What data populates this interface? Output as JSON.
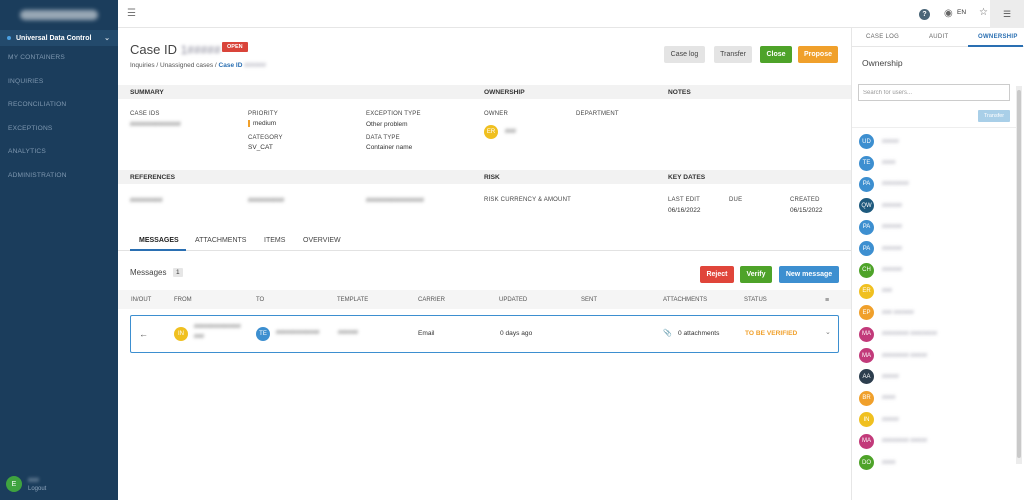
{
  "sidebar": {
    "active_item": "Universal Data Control",
    "nav": [
      "MY CONTAINERS",
      "INQUIRIES",
      "RECONCILIATION",
      "EXCEPTIONS",
      "ANALYTICS",
      "ADMINISTRATION"
    ],
    "user_initial": "E",
    "user_name": "###",
    "user_sub": "Logout"
  },
  "topbar": {
    "lang": "EN",
    "help_icon": "help-icon",
    "globe_icon": "globe-icon",
    "star_icon": "star-icon",
    "list_icon": "list-icon"
  },
  "case": {
    "title": "Case ID",
    "case_id": "1#####",
    "status": "OPEN",
    "breadcrumb": [
      "Inquiries",
      "Unassigned cases",
      "Case ID"
    ],
    "breadcrumb_id": "######"
  },
  "actions": {
    "case_log": "Case log",
    "transfer": "Transfer",
    "close": "Close",
    "propose": "Propose"
  },
  "summary": {
    "header": "SUMMARY",
    "case_ids_label": "CASE IDS",
    "case_ids_value": "##############",
    "priority_label": "PRIORITY",
    "priority_value": "medium",
    "category_label": "CATEGORY",
    "category_value": "SV_CAT",
    "exception_type_label": "EXCEPTION TYPE",
    "exception_type_value": "Other problem",
    "data_type_label": "DATA TYPE",
    "data_type_value": "Container name"
  },
  "ownership": {
    "header": "OWNERSHIP",
    "owner_label": "OWNER",
    "department_label": "DEPARTMENT",
    "owner_initials": "ER",
    "owner_name": "###"
  },
  "notes": {
    "header": "NOTES"
  },
  "references": {
    "header": "REFERENCES",
    "values": [
      "#########",
      "##########",
      "################"
    ]
  },
  "risk": {
    "header": "RISK",
    "label": "RISK CURRENCY & AMOUNT"
  },
  "key_dates": {
    "header": "KEY DATES",
    "last_edit_label": "LAST EDIT",
    "last_edit": "06/16/2022",
    "due_label": "DUE",
    "created_label": "CREATED",
    "created": "06/15/2022"
  },
  "tabs": [
    "MESSAGES",
    "ATTACHMENTS",
    "ITEMS",
    "OVERVIEW"
  ],
  "messages": {
    "label": "Messages",
    "count": "1",
    "reject": "Reject",
    "verify": "Verify",
    "new_message": "New message",
    "columns": [
      "IN/OUT",
      "FROM",
      "TO",
      "TEMPLATE",
      "CARRIER",
      "UPDATED",
      "SENT",
      "ATTACHMENTS",
      "STATUS"
    ],
    "row": {
      "direction_icon": "arrow-left-icon",
      "from_initials": "IN",
      "from_text": "##############",
      "from_text2": "###",
      "to_initials": "TE",
      "to_text": "#############",
      "template": "######",
      "carrier": "Email",
      "updated": "0 days ago",
      "attachments": "0 attachments",
      "status": "TO BE VERIFIED"
    }
  },
  "right_panel": {
    "tabs": [
      "CASE LOG",
      "AUDIT",
      "OWNERSHIP"
    ],
    "title": "Ownership",
    "search_placeholder": "Search for users...",
    "transfer": "Transfer",
    "users": [
      {
        "i": "UD",
        "c": "#3d8fd0",
        "n": "#####"
      },
      {
        "i": "TE",
        "c": "#3d8fd0",
        "n": "####"
      },
      {
        "i": "PA",
        "c": "#3d8fd0",
        "n": "########"
      },
      {
        "i": "QW",
        "c": "#1e5a7e",
        "n": "######"
      },
      {
        "i": "PA",
        "c": "#3d8fd0",
        "n": "######"
      },
      {
        "i": "PA",
        "c": "#3d8fd0",
        "n": "######"
      },
      {
        "i": "CH",
        "c": "#4ea329",
        "n": "######"
      },
      {
        "i": "ER",
        "c": "#f0c020",
        "n": "###"
      },
      {
        "i": "EP",
        "c": "#f0a02b",
        "n": "### ######"
      },
      {
        "i": "MA",
        "c": "#c23a7a",
        "n": "######## ########"
      },
      {
        "i": "MA",
        "c": "#c23a7a",
        "n": "######## #####"
      },
      {
        "i": "AA",
        "c": "#2d3e4e",
        "n": "#####"
      },
      {
        "i": "BR",
        "c": "#f0a02b",
        "n": "####"
      },
      {
        "i": "IN",
        "c": "#f0c020",
        "n": "#####"
      },
      {
        "i": "MA",
        "c": "#c23a7a",
        "n": "######## #####"
      },
      {
        "i": "DO",
        "c": "#4ea329",
        "n": "####"
      }
    ]
  }
}
